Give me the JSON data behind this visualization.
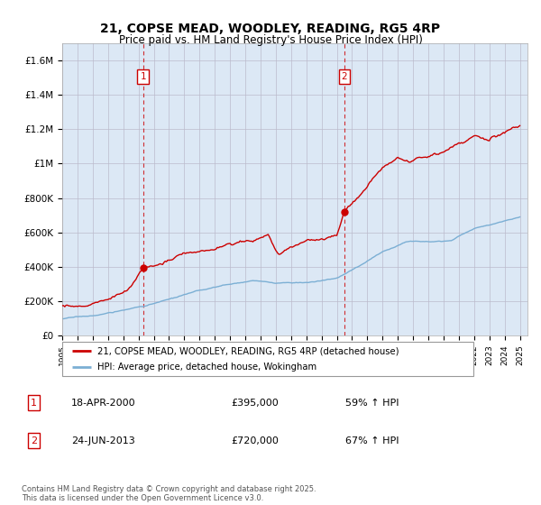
{
  "title": "21, COPSE MEAD, WOODLEY, READING, RG5 4RP",
  "subtitle": "Price paid vs. HM Land Registry's House Price Index (HPI)",
  "ylim": [
    0,
    1700000
  ],
  "yticks": [
    0,
    200000,
    400000,
    600000,
    800000,
    1000000,
    1200000,
    1400000,
    1600000
  ],
  "ytick_labels": [
    "£0",
    "£200K",
    "£400K",
    "£600K",
    "£800K",
    "£1M",
    "£1.2M",
    "£1.4M",
    "£1.6M"
  ],
  "sale1_date_label": "18-APR-2000",
  "sale1_price": 395000,
  "sale1_pct": "59% ↑ HPI",
  "sale2_date_label": "24-JUN-2013",
  "sale2_price": 720000,
  "sale2_pct": "67% ↑ HPI",
  "sale1_x": 2000.3,
  "sale2_x": 2013.5,
  "legend_line1": "21, COPSE MEAD, WOODLEY, READING, RG5 4RP (detached house)",
  "legend_line2": "HPI: Average price, detached house, Wokingham",
  "footnote": "Contains HM Land Registry data © Crown copyright and database right 2025.\nThis data is licensed under the Open Government Licence v3.0.",
  "line_color_red": "#cc0000",
  "line_color_blue": "#7bafd4",
  "bg_color": "#ffffff",
  "plot_bg_color": "#dce8f5",
  "grid_color": "#bbbbcc",
  "title_fontsize": 10,
  "subtitle_fontsize": 8.5
}
